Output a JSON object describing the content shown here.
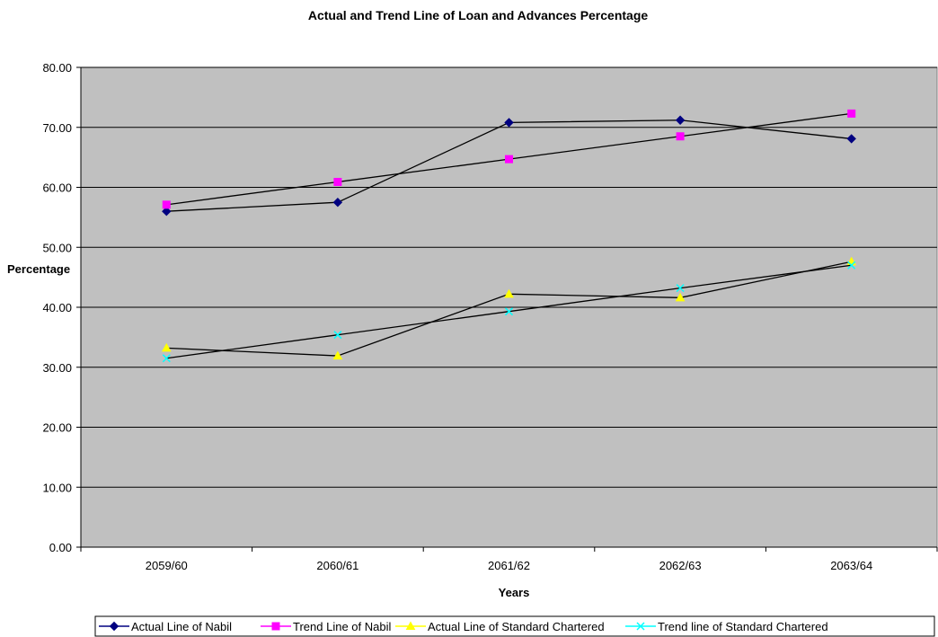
{
  "chart_data": {
    "type": "line",
    "title": "Actual and Trend Line of Loan and Advances Percentage",
    "xlabel": "Years",
    "ylabel": "Percentage",
    "categories": [
      "2059/60",
      "2060/61",
      "2061/62",
      "2062/63",
      "2063/64"
    ],
    "ylim": [
      0,
      80
    ],
    "yticks": [
      "0.00",
      "10.00",
      "20.00",
      "30.00",
      "40.00",
      "50.00",
      "60.00",
      "70.00",
      "80.00"
    ],
    "grid": true,
    "plot_background": "#c0c0c0",
    "legend_position": "bottom",
    "series": [
      {
        "name": "Actual Line of Nabil",
        "values": [
          56.0,
          57.5,
          70.8,
          71.2,
          68.1
        ],
        "color": "#000080",
        "marker": "diamond"
      },
      {
        "name": "Trend Line of Nabil",
        "values": [
          57.1,
          60.9,
          64.7,
          68.5,
          72.3
        ],
        "color": "#ff00ff",
        "marker": "square"
      },
      {
        "name": "Actual Line of Standard Chartered",
        "values": [
          33.2,
          31.9,
          42.2,
          41.6,
          47.6
        ],
        "color": "#ffff00",
        "marker": "triangle"
      },
      {
        "name": "Trend line of Standard Chartered",
        "values": [
          31.5,
          35.4,
          39.3,
          43.2,
          47.0
        ],
        "color": "#00ffff",
        "marker": "x"
      }
    ]
  }
}
